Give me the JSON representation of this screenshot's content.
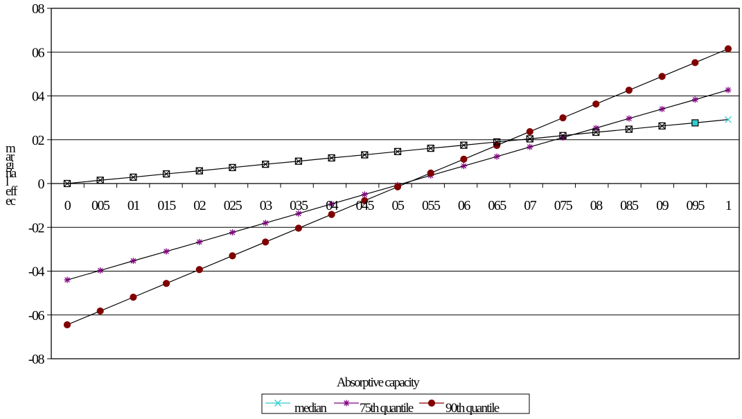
{
  "chart_data": {
    "type": "line",
    "title": "",
    "xlabel": "Absorptive capacity",
    "ylabel": "marginal effect",
    "ylabel_lines": [
      "m",
      "ar",
      "gi",
      "na",
      "l",
      "eff",
      "ec"
    ],
    "x_tick_labels": [
      "0",
      "005",
      "01",
      "015",
      "02",
      "025",
      "03",
      "035",
      "04",
      "045",
      "05",
      "055",
      "06",
      "065",
      "07",
      "075",
      "08",
      "085",
      "09",
      "095",
      "1"
    ],
    "y_tick_labels": [
      "08",
      "06",
      "04",
      "02",
      "0",
      "-02",
      "-04",
      "-06",
      "-08"
    ],
    "x": [
      0,
      0.05,
      0.1,
      0.15,
      0.2,
      0.25,
      0.3,
      0.35,
      0.4,
      0.45,
      0.5,
      0.55,
      0.6,
      0.65,
      0.7,
      0.75,
      0.8,
      0.85,
      0.9,
      0.95,
      1
    ],
    "ylim": [
      -0.8,
      0.8
    ],
    "y_ticks": [
      0.8,
      0.6,
      0.4,
      0.2,
      0,
      -0.2,
      -0.4,
      -0.6,
      -0.8
    ],
    "grid": true,
    "legend_position": "bottom",
    "series": [
      {
        "name": "median",
        "color": "#33cccc",
        "marker": "x-boxed",
        "values": [
          0,
          0.015,
          0.029,
          0.044,
          0.058,
          0.073,
          0.088,
          0.102,
          0.117,
          0.131,
          0.146,
          0.161,
          0.175,
          0.19,
          0.204,
          0.219,
          0.234,
          0.248,
          0.263,
          0.277,
          0.292
        ]
      },
      {
        "name": "75th quantile",
        "color": "#800080",
        "marker": "star",
        "values": [
          -0.44,
          -0.397,
          -0.353,
          -0.31,
          -0.267,
          -0.223,
          -0.18,
          -0.137,
          -0.093,
          -0.05,
          -0.007,
          0.037,
          0.08,
          0.123,
          0.167,
          0.21,
          0.253,
          0.297,
          0.34,
          0.383,
          0.427
        ]
      },
      {
        "name": "90th quantile",
        "color": "#800000",
        "marker": "circle",
        "values": [
          -0.645,
          -0.582,
          -0.519,
          -0.456,
          -0.393,
          -0.33,
          -0.267,
          -0.204,
          -0.141,
          -0.078,
          -0.015,
          0.048,
          0.111,
          0.174,
          0.237,
          0.3,
          0.363,
          0.426,
          0.489,
          0.552,
          0.615
        ]
      }
    ]
  }
}
